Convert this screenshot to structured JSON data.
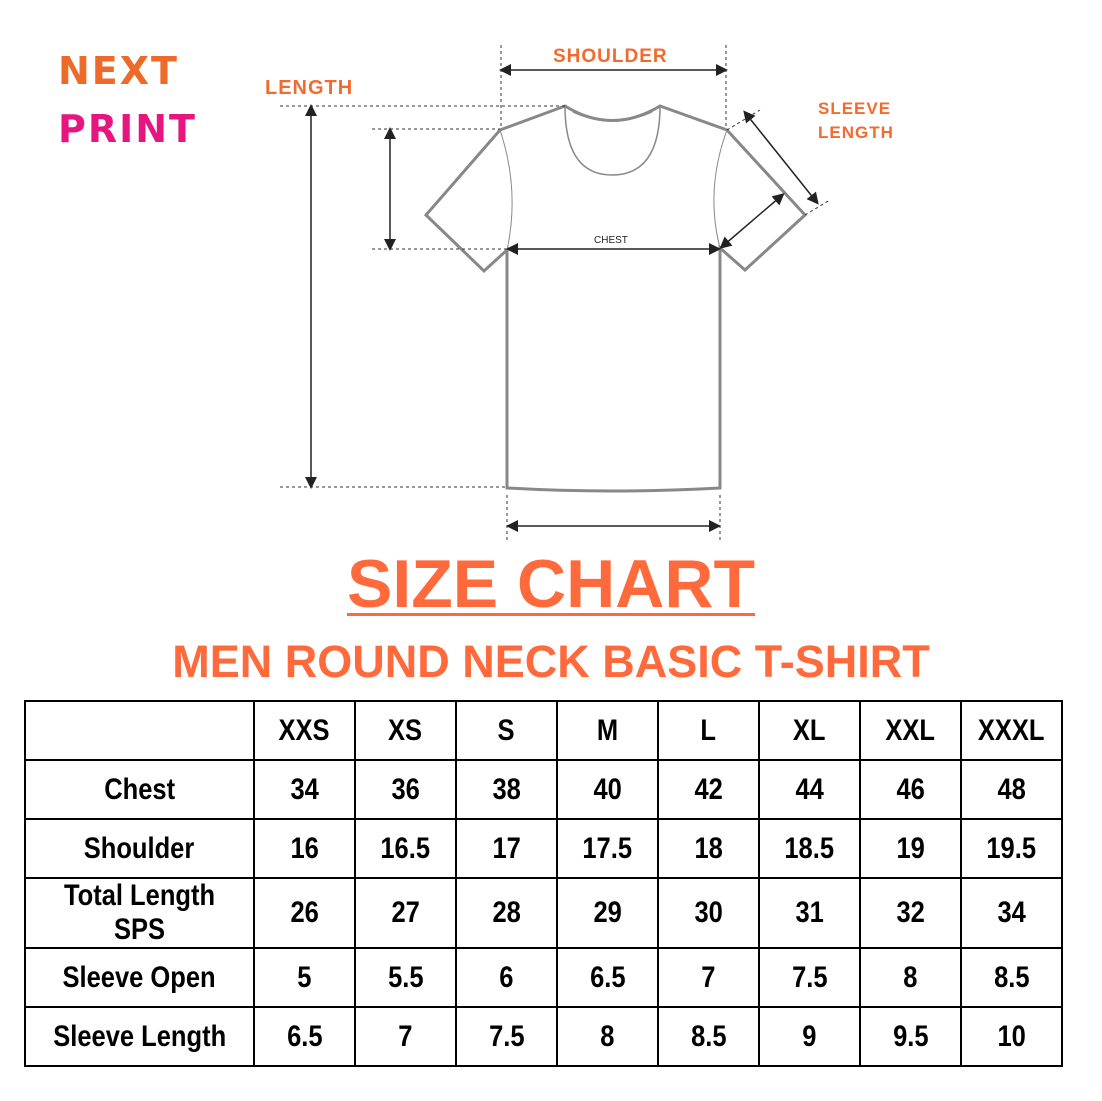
{
  "brand": {
    "line1": "NEXT",
    "line2": "PRINT",
    "orange": "#EE6A2A",
    "pink": "#E6157F"
  },
  "diagram": {
    "length_label": "LENGTH",
    "shoulder_label": "SHOULDER",
    "sleeve_label_1": "SLEEVE",
    "sleeve_label_2": "LENGTH",
    "chest_label": "CHEST"
  },
  "title": "SIZE CHART",
  "subtitle": "MEN ROUND NECK BASIC T-SHIRT",
  "accent": "#FF6A3D",
  "table": {
    "sizes": [
      "XXS",
      "XS",
      "S",
      "M",
      "L",
      "XL",
      "XXL",
      "XXXL"
    ],
    "rows": [
      {
        "label": "Chest",
        "values": [
          "34",
          "36",
          "38",
          "40",
          "42",
          "44",
          "46",
          "48"
        ]
      },
      {
        "label": "Shoulder",
        "values": [
          "16",
          "16.5",
          "17",
          "17.5",
          "18",
          "18.5",
          "19",
          "19.5"
        ]
      },
      {
        "label": "Total Length SPS",
        "values": [
          "26",
          "27",
          "28",
          "29",
          "30",
          "31",
          "32",
          "34"
        ]
      },
      {
        "label": "Sleeve Open",
        "values": [
          "5",
          "5.5",
          "6",
          "6.5",
          "7",
          "7.5",
          "8",
          "8.5"
        ]
      },
      {
        "label": "Sleeve Length",
        "values": [
          "6.5",
          "7",
          "7.5",
          "8",
          "8.5",
          "9",
          "9.5",
          "10"
        ]
      }
    ]
  }
}
